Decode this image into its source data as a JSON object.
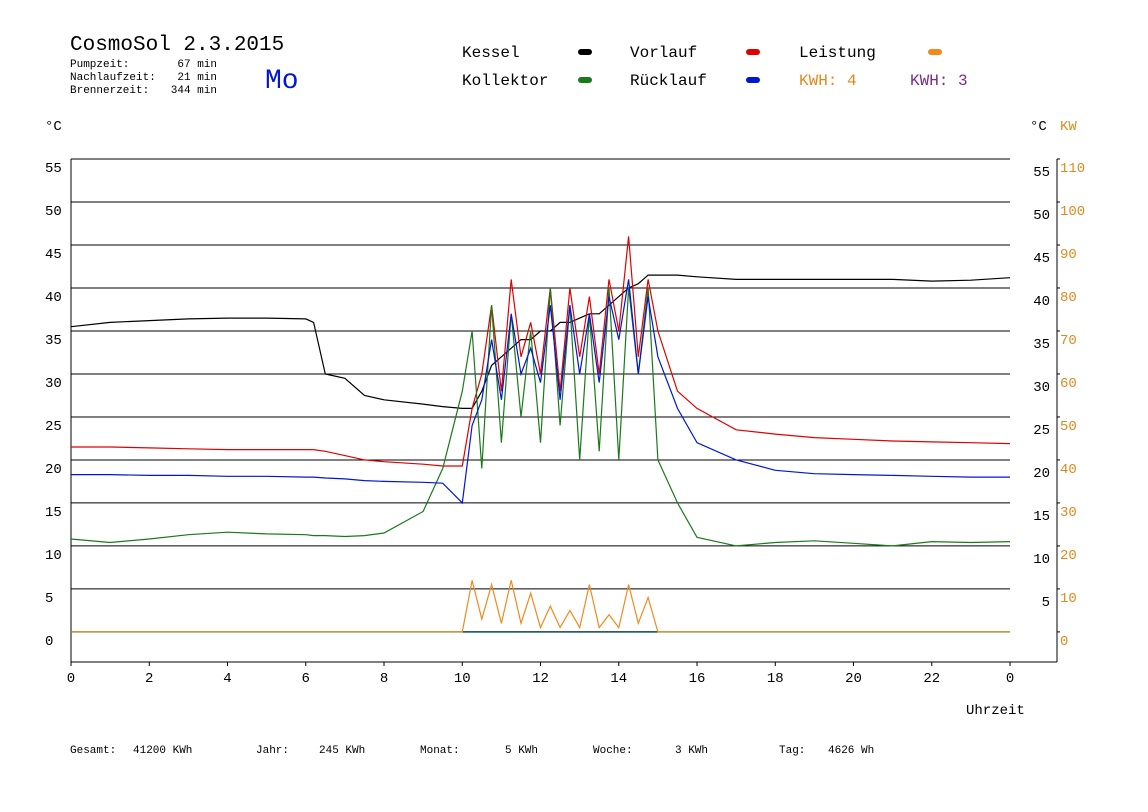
{
  "chart_data": {
    "type": "line",
    "title": "CosmoSol 2.3.2015",
    "day": "Mo",
    "info": [
      {
        "label": "Pumpzeit:",
        "value": "67 min"
      },
      {
        "label": "Nachlaufzeit:",
        "value": "21 min"
      },
      {
        "label": "Brennerzeit:",
        "value": "344 min"
      }
    ],
    "y_unit": "°C",
    "y2_unit_c": "°C",
    "y2_unit": "KW",
    "x_label": "Uhrzeit",
    "kwh_labels": [
      {
        "text": "KWH: 4",
        "color": "#e08a1e"
      },
      {
        "text": "KWH: 3",
        "color": "#7a2a8a"
      }
    ],
    "x": [
      0,
      1,
      2,
      3,
      4,
      5,
      6,
      6.2,
      6.5,
      7,
      7.5,
      8,
      9,
      9.5,
      10,
      10.25,
      10.5,
      10.75,
      11,
      11.25,
      11.5,
      11.75,
      12,
      12.25,
      12.5,
      12.75,
      13,
      13.25,
      13.5,
      13.75,
      14,
      14.25,
      14.5,
      14.75,
      15,
      15.5,
      16,
      17,
      18,
      19,
      20,
      21,
      22,
      23,
      24
    ],
    "xlim": [
      0,
      25.2
    ],
    "xticks": [
      0,
      2,
      4,
      6,
      8,
      10,
      12,
      14,
      16,
      18,
      20,
      22,
      {
        "value": 24,
        "label": "0"
      }
    ],
    "ylim": [
      -3.5,
      55
    ],
    "yticks": [
      0,
      5,
      10,
      15,
      20,
      25,
      30,
      35,
      40,
      45,
      50,
      55
    ],
    "right_yticks": [
      5,
      10,
      15,
      20,
      25,
      30,
      35,
      40,
      45,
      50,
      55
    ],
    "y2lim": [
      -7,
      110
    ],
    "y2ticks": [
      0,
      10,
      20,
      30,
      40,
      50,
      60,
      70,
      80,
      90,
      100,
      110
    ],
    "grid": true,
    "series": [
      {
        "name": "Kessel",
        "color": "#000000",
        "values": [
          35.5,
          36,
          36.2,
          36.4,
          36.5,
          36.5,
          36.4,
          36,
          30,
          29.5,
          27.5,
          27,
          26.5,
          26.2,
          26,
          26,
          28,
          31,
          32,
          33,
          34,
          34,
          35,
          35,
          36,
          36,
          36.5,
          37,
          37,
          38,
          39,
          40,
          40.5,
          41.5,
          41.5,
          41.5,
          41.3,
          41,
          41,
          41,
          41,
          41,
          40.8,
          40.9,
          41.2
        ]
      },
      {
        "name": "Vorlauf",
        "color": "#e00000",
        "values": [
          21.5,
          21.5,
          21.4,
          21.3,
          21.2,
          21.2,
          21.2,
          21.2,
          21,
          20.5,
          20,
          19.8,
          19.5,
          19.3,
          19.3,
          26,
          30,
          38,
          28,
          41,
          32,
          36,
          30,
          40,
          28,
          40,
          32,
          39,
          30,
          41,
          35,
          46,
          32,
          41,
          35,
          28,
          26,
          23.5,
          23,
          22.6,
          22.4,
          22.2,
          22.1,
          22,
          21.9
        ]
      },
      {
        "name": "Leistung",
        "color": "#f08a1e",
        "axis": "y2",
        "values": [
          0,
          0,
          0,
          0,
          0,
          0,
          0,
          0,
          0,
          0,
          0,
          0,
          0,
          0,
          0,
          12,
          3,
          11,
          2,
          12,
          2,
          9,
          1,
          6,
          1,
          5,
          1,
          11,
          1,
          4,
          1,
          11,
          2,
          8,
          0,
          0,
          0,
          0,
          0,
          0,
          0,
          0,
          0,
          0,
          0
        ]
      },
      {
        "name": "Kollektor",
        "color": "#1a7a1a",
        "values": [
          10.8,
          10.4,
          10.8,
          11.3,
          11.6,
          11.4,
          11.3,
          11.2,
          11.2,
          11.1,
          11.2,
          11.5,
          14,
          19,
          28,
          35,
          19,
          38,
          22,
          37,
          25,
          35,
          22,
          40,
          24,
          38,
          20,
          37,
          21,
          40,
          20,
          40,
          30,
          40,
          20,
          15,
          11,
          10,
          10.4,
          10.6,
          10.3,
          10,
          10.5,
          10.4,
          10.5
        ]
      },
      {
        "name": "Rücklauf",
        "color": "#0018d0",
        "values": [
          18.3,
          18.3,
          18.2,
          18.2,
          18.1,
          18.1,
          18,
          18,
          17.9,
          17.8,
          17.6,
          17.5,
          17.4,
          17.3,
          15,
          24,
          27,
          34,
          27,
          37,
          30,
          33,
          29,
          38,
          27,
          38,
          30,
          37,
          29,
          39,
          34,
          41,
          30,
          39,
          32,
          26,
          22,
          20,
          18.8,
          18.4,
          18.3,
          18.2,
          18.1,
          18,
          18
        ]
      }
    ],
    "footer": [
      {
        "label": "Gesamt:",
        "value": "41200 KWh"
      },
      {
        "label": "Jahr:",
        "value": "245 KWh"
      },
      {
        "label": "Monat:",
        "value": "5 KWh"
      },
      {
        "label": "Woche:",
        "value": "3 KWh"
      },
      {
        "label": "Tag:",
        "value": "4626 Wh"
      }
    ]
  }
}
